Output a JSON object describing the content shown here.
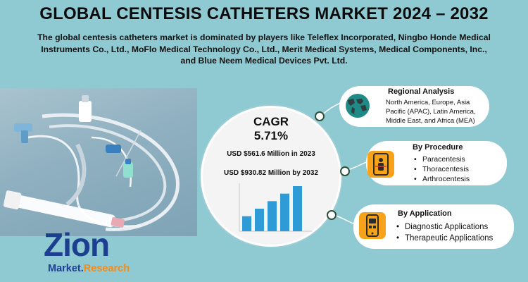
{
  "header": {
    "title": "GLOBAL CENTESIS CATHETERS MARKET 2024 – 2032",
    "subtitle_lines": [
      "The global centesis catheters market is dominated by players like Teleflex Incorporated, Ningbo Honde Medical",
      "Instruments Co., Ltd., MoFlo Medical Technology Co., Ltd., Merit Medical Systems, Medical Components, Inc.,",
      "and Blue Neem Medical Devices Pvt. Ltd."
    ]
  },
  "center": {
    "cagr_label": "CAGR",
    "cagr_value": "5.71%",
    "value_2023": "USD $561.6 Million in 2023",
    "value_2032": "USD $930.82 Million  by 2032"
  },
  "mini_chart": {
    "values": [
      2,
      3,
      4,
      5,
      6
    ],
    "bar_color": "#2f9bd6"
  },
  "cards": {
    "regional": {
      "title": "Regional Analysis",
      "lines": [
        "North America, Europe, Asia",
        "Pacific (APAC), Latin America,",
        "Middle East, and Africa (MEA)"
      ]
    },
    "procedure": {
      "title": "By Procedure",
      "items": [
        "Paracentesis",
        "Thoracentesis",
        "Arthrocentesis"
      ]
    },
    "application": {
      "title": "By Application",
      "items": [
        "Diagnostic Applications",
        "Therapeutic Applications"
      ]
    }
  },
  "logo": {
    "word": "Zion",
    "tag_left": "Market.",
    "tag_right": "Research"
  },
  "colors": {
    "background": "#8fcad3",
    "accent_orange": "#f6a21b",
    "logo_blue": "#1c3f8f"
  },
  "icons": [
    "world-map-icon",
    "scanner-person-icon",
    "phone-app-icon"
  ]
}
